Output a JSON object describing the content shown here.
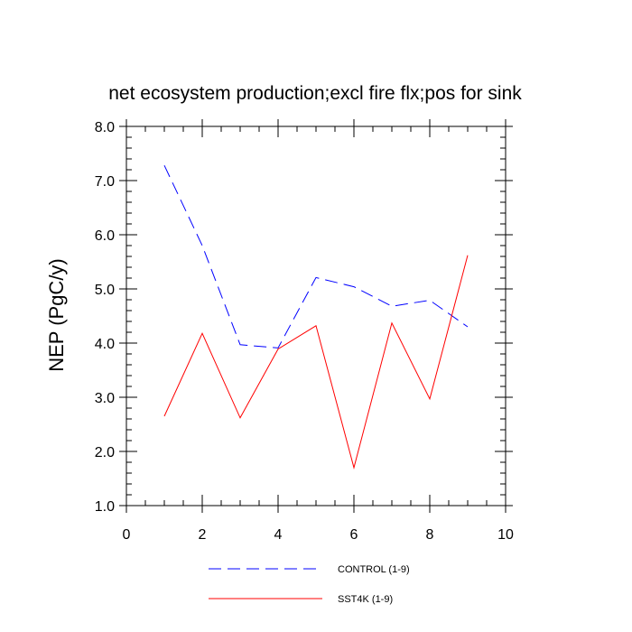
{
  "chart_data": {
    "type": "line",
    "title": "net ecosystem production;excl fire flx;pos for sink",
    "xlabel": "",
    "ylabel": "NEP  (PgC/y)",
    "xlim": [
      0,
      10
    ],
    "ylim": [
      1.0,
      8.0
    ],
    "x_ticks": [
      0,
      2,
      4,
      6,
      8,
      10
    ],
    "x_tick_labels": [
      "0",
      "2",
      "4",
      "6",
      "8",
      "10"
    ],
    "y_ticks": [
      1,
      2,
      3,
      4,
      5,
      6,
      7,
      8
    ],
    "y_tick_labels": [
      "1.0",
      "2.0",
      "3.0",
      "4.0",
      "5.0",
      "6.0",
      "7.0",
      "8.0"
    ],
    "grid": false,
    "legend_position": "bottom-center",
    "series": [
      {
        "name": "CONTROL (1-9)",
        "color": "#0000ff",
        "style": "dashed",
        "x": [
          1,
          2,
          3,
          4,
          5,
          6,
          7,
          8,
          9
        ],
        "values": [
          7.28,
          5.8,
          3.97,
          3.91,
          5.21,
          5.04,
          4.68,
          4.79,
          4.3
        ]
      },
      {
        "name": "SST4K (1-9)",
        "color": "#ff0000",
        "style": "solid",
        "x": [
          1,
          2,
          3,
          4,
          5,
          6,
          7,
          8,
          9
        ],
        "values": [
          2.65,
          4.18,
          2.62,
          3.89,
          4.32,
          1.7,
          4.37,
          2.97,
          5.62
        ]
      }
    ]
  }
}
